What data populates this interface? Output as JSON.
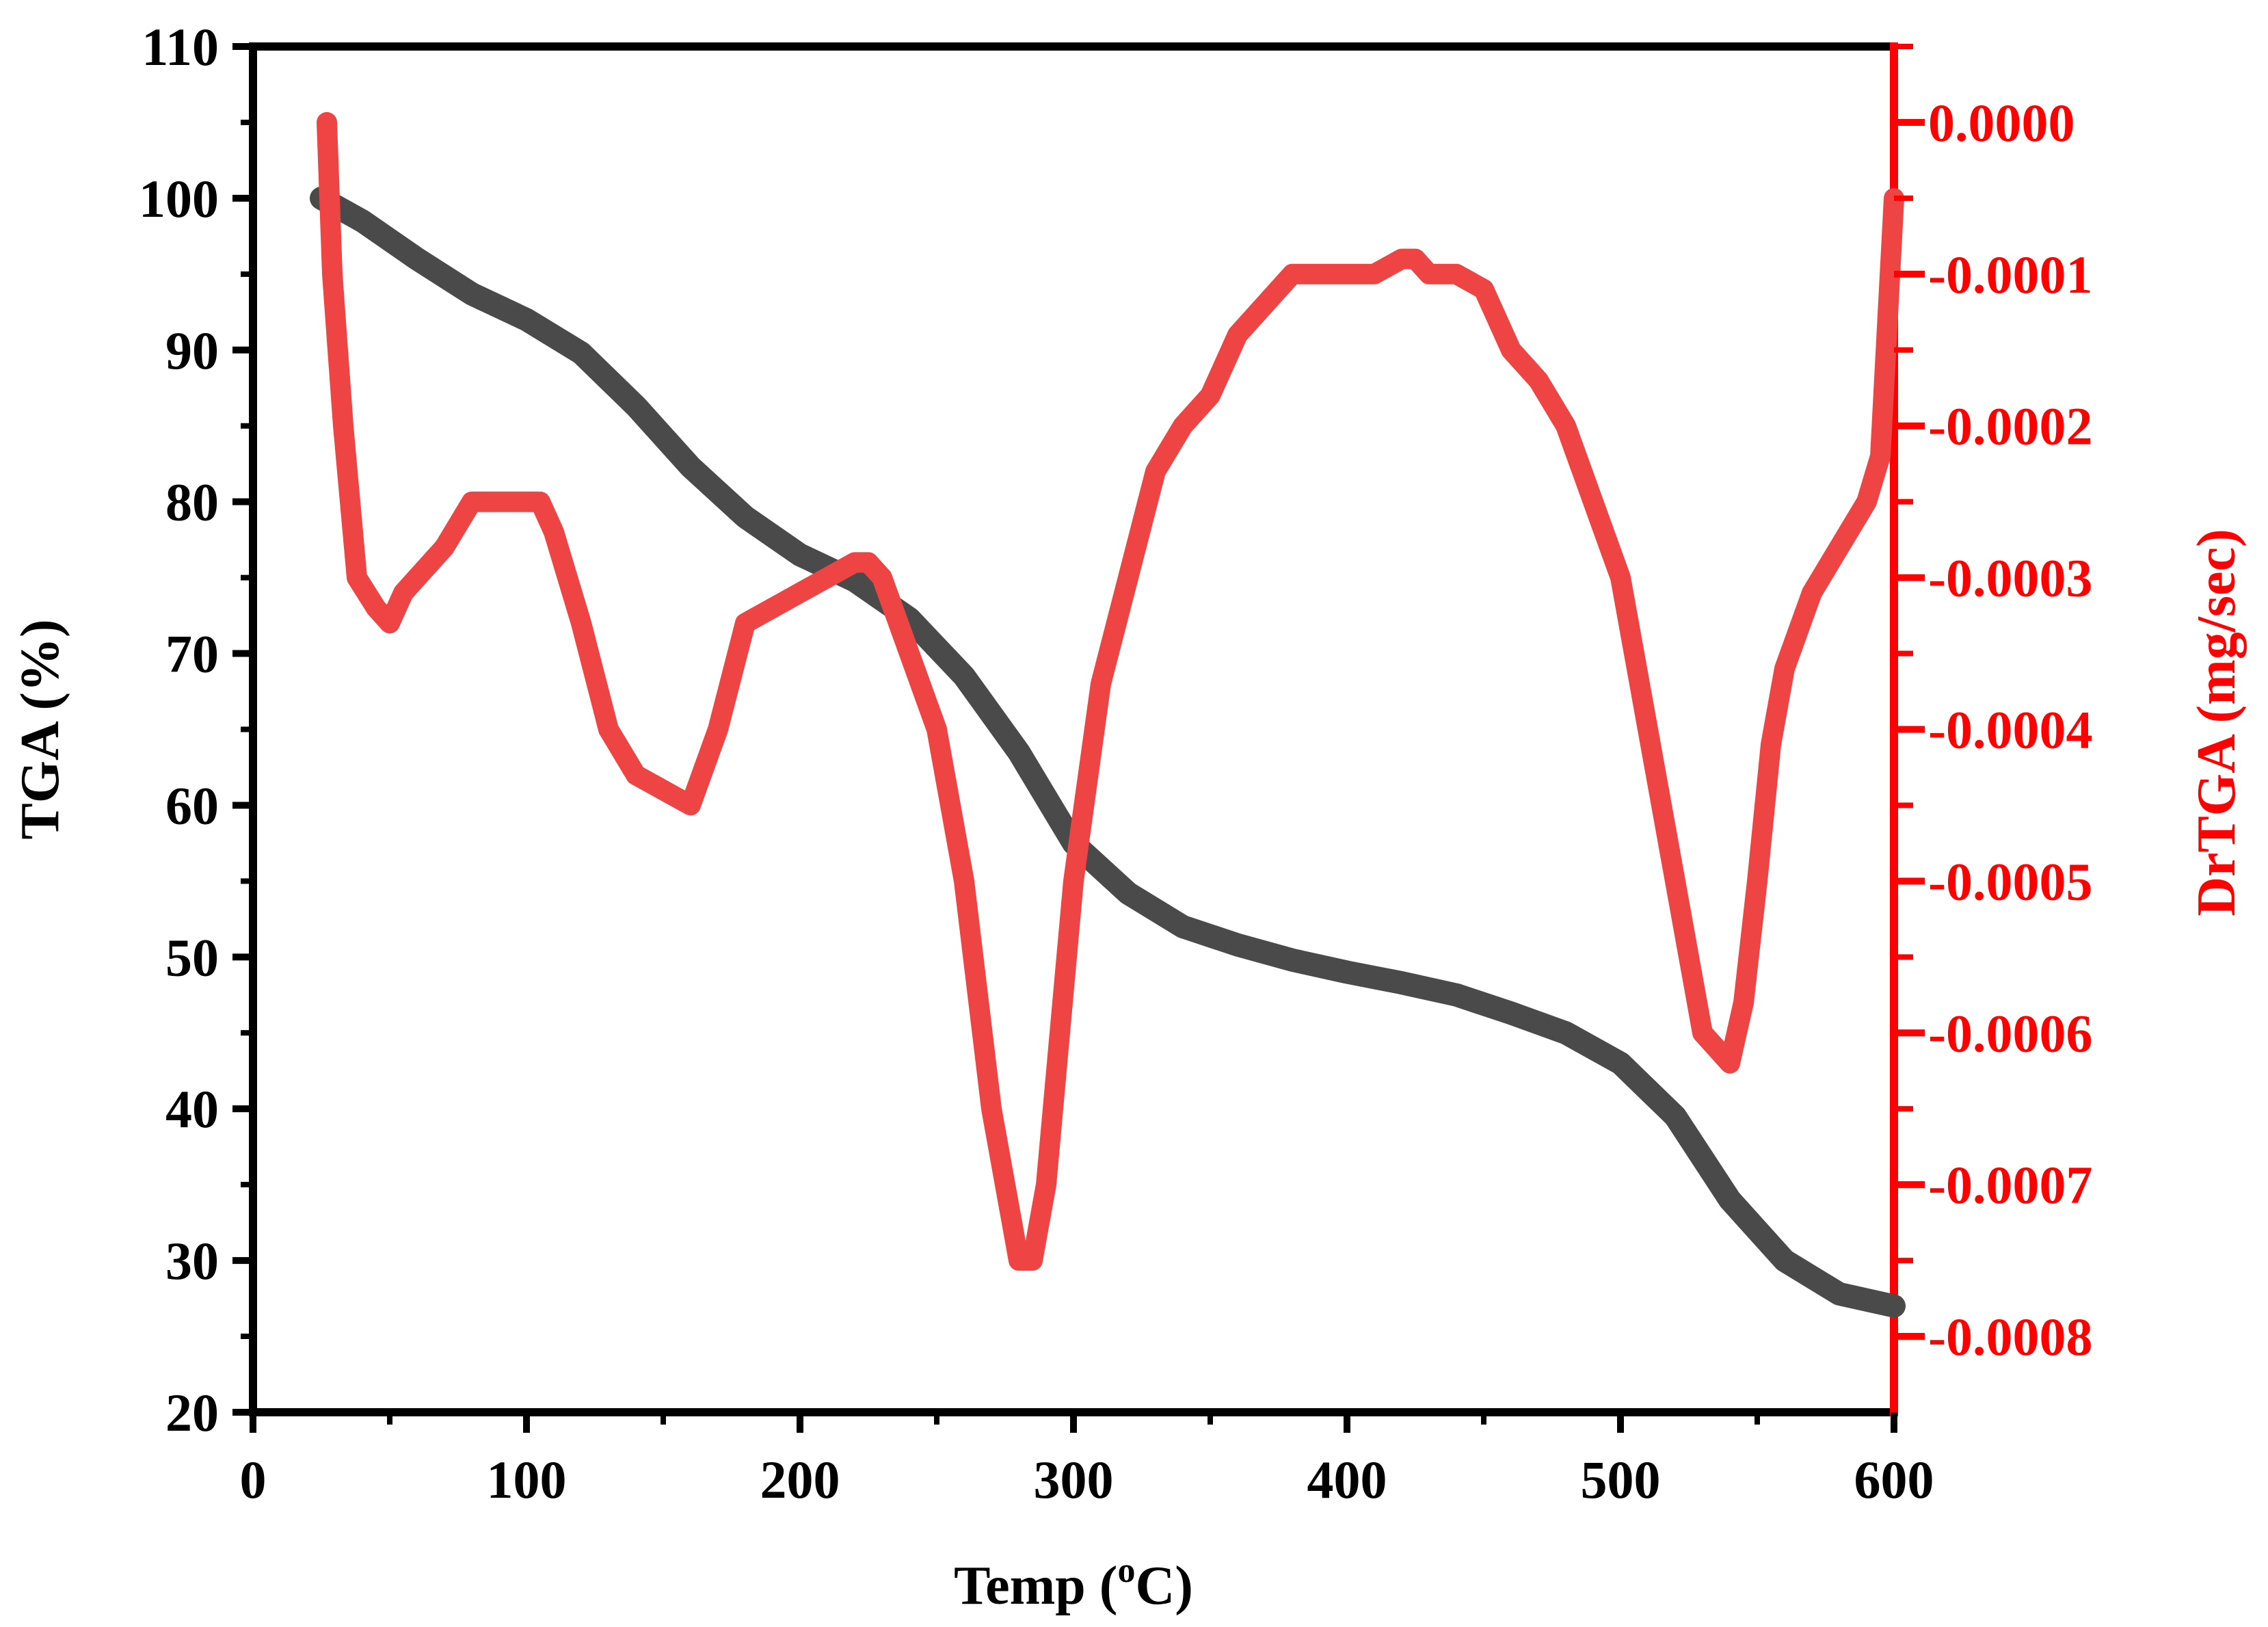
{
  "chart_data": {
    "type": "line",
    "title": "",
    "xlabel": "Temp (°C)",
    "xlabel_parts": {
      "prefix": "Temp (",
      "superscript": "o",
      "suffix": "C)"
    },
    "ylabel_left": "TGA (%)",
    "ylabel_right": "DrTGA (mg/sec)",
    "xlim": [
      0,
      600
    ],
    "ylim_left": [
      20,
      110
    ],
    "ylim_right": [
      -0.00085,
      5e-05
    ],
    "x_ticks": [
      0,
      100,
      200,
      300,
      400,
      500,
      600
    ],
    "x_tick_labels": [
      "0",
      "100",
      "200",
      "300",
      "400",
      "500",
      "600"
    ],
    "y_left_ticks": [
      20,
      30,
      40,
      50,
      60,
      70,
      80,
      90,
      100,
      110
    ],
    "y_left_tick_labels": [
      "20",
      "30",
      "40",
      "50",
      "60",
      "70",
      "80",
      "90",
      "100",
      "110"
    ],
    "y_right_ticks": [
      0,
      -0.0001,
      -0.0002,
      -0.0003,
      -0.0004,
      -0.0005,
      -0.0006,
      -0.0007,
      -0.0008
    ],
    "y_right_tick_labels": [
      "0.0000",
      "-0.0001",
      "-0.0002",
      "-0.0003",
      "-0.0004",
      "-0.0005",
      "-0.0006",
      "-0.0007",
      "-0.0008"
    ],
    "grid": false,
    "colors": {
      "tga": "#4a4a4a",
      "drtga": "#ef4444",
      "axis": "#000000",
      "right_axis": "#ff0000"
    },
    "series": [
      {
        "name": "TGA",
        "axis": "left",
        "color": "#4a4a4a",
        "x": [
          25,
          40,
          60,
          80,
          100,
          120,
          140,
          160,
          180,
          200,
          220,
          240,
          260,
          280,
          300,
          320,
          340,
          360,
          380,
          400,
          420,
          440,
          460,
          480,
          500,
          520,
          540,
          560,
          580,
          600
        ],
        "y": [
          100,
          98.5,
          96,
          93.7,
          92,
          89.8,
          86.3,
          82.3,
          79,
          76.5,
          74.8,
          72.3,
          68.5,
          63.5,
          57.5,
          54.2,
          52,
          50.8,
          49.8,
          49,
          48.3,
          47.5,
          46.3,
          45,
          43,
          39.5,
          34,
          30,
          27.8,
          27
        ]
      },
      {
        "name": "DrTGA",
        "axis": "right",
        "color": "#ef4444",
        "x": [
          27,
          29,
          33,
          38,
          45,
          50,
          55,
          60,
          70,
          80,
          90,
          100,
          105,
          110,
          120,
          130,
          140,
          150,
          160,
          170,
          180,
          190,
          200,
          210,
          220,
          225,
          230,
          240,
          250,
          260,
          270,
          280,
          285,
          290,
          295,
          300,
          310,
          320,
          330,
          340,
          350,
          360,
          370,
          380,
          390,
          400,
          410,
          420,
          425,
          430,
          440,
          450,
          460,
          470,
          480,
          490,
          500,
          510,
          520,
          530,
          535,
          540,
          545,
          550,
          555,
          560,
          570,
          580,
          590,
          595,
          600
        ],
        "y": [
          0.0,
          -0.0001,
          -0.0002,
          -0.0003,
          -0.00032,
          -0.00033,
          -0.00031,
          -0.0003,
          -0.00028,
          -0.00025,
          -0.00025,
          -0.00025,
          -0.00025,
          -0.00027,
          -0.00033,
          -0.0004,
          -0.00043,
          -0.00044,
          -0.00045,
          -0.0004,
          -0.00033,
          -0.00032,
          -0.00031,
          -0.0003,
          -0.00029,
          -0.00029,
          -0.0003,
          -0.00035,
          -0.0004,
          -0.0005,
          -0.00065,
          -0.00075,
          -0.00075,
          -0.0007,
          -0.0006,
          -0.0005,
          -0.00037,
          -0.0003,
          -0.00023,
          -0.0002,
          -0.00018,
          -0.00014,
          -0.00012,
          -0.0001,
          -0.0001,
          -0.0001,
          -0.0001,
          -9e-05,
          -9e-05,
          -0.0001,
          -0.0001,
          -0.00011,
          -0.00015,
          -0.00017,
          -0.0002,
          -0.00025,
          -0.0003,
          -0.0004,
          -0.0005,
          -0.0006,
          -0.00061,
          -0.00062,
          -0.00058,
          -0.0005,
          -0.00041,
          -0.00036,
          -0.00031,
          -0.00028,
          -0.00025,
          -0.00022,
          -5e-05
        ]
      }
    ]
  }
}
